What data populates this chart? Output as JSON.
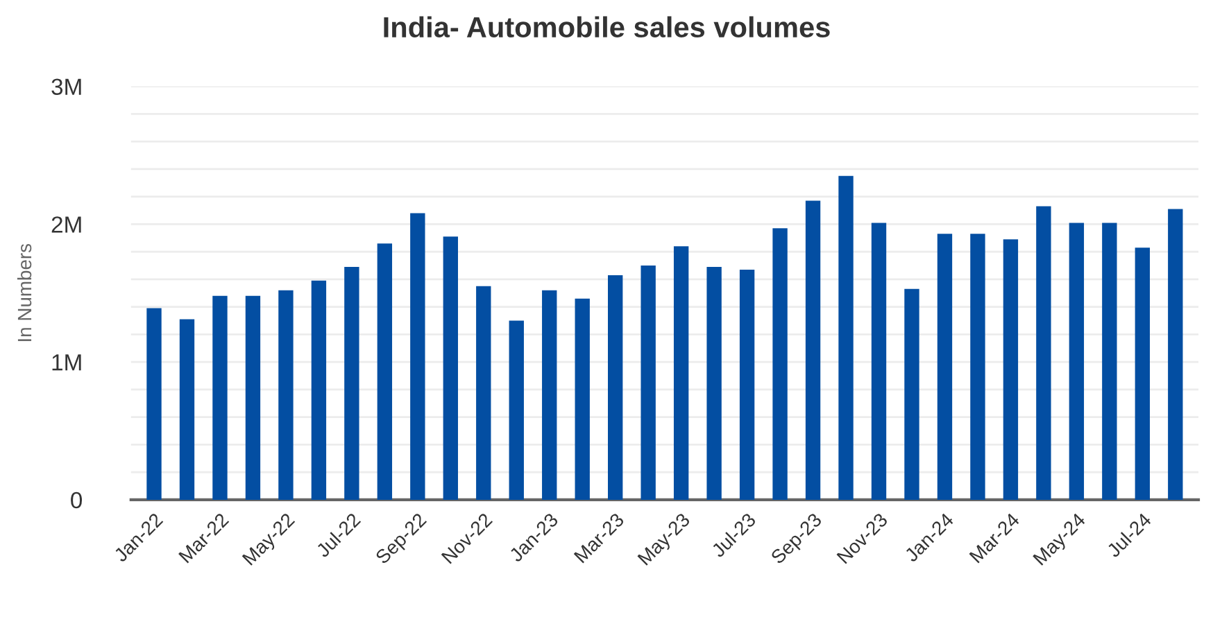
{
  "chart_data": {
    "type": "bar",
    "title": "India- Automobile sales volumes",
    "ylabel": "In Numbers",
    "categories": [
      "Jan-22",
      null,
      "Mar-22",
      null,
      "May-22",
      null,
      "Jul-22",
      null,
      "Sep-22",
      null,
      "Nov-22",
      null,
      "Jan-23",
      null,
      "Mar-23",
      null,
      "May-23",
      null,
      "Jul-23",
      null,
      "Sep-23",
      null,
      "Nov-23",
      null,
      "Jan-24",
      null,
      "Mar-24",
      null,
      "May-24",
      null,
      "Jul-24",
      null
    ],
    "values": [
      1390000,
      1310000,
      1480000,
      1480000,
      1520000,
      1590000,
      1690000,
      1860000,
      2080000,
      1910000,
      1550000,
      1300000,
      1520000,
      1460000,
      1630000,
      1700000,
      1840000,
      1690000,
      1670000,
      1970000,
      2170000,
      2350000,
      2010000,
      1530000,
      1930000,
      1930000,
      1890000,
      2130000,
      2010000,
      2010000,
      1830000,
      2110000
    ],
    "color": "#034ea2",
    "ylim": [
      0,
      3000000
    ],
    "yticks": [
      {
        "value": 0,
        "label": "0"
      },
      {
        "value": 200000,
        "label": null
      },
      {
        "value": 400000,
        "label": null
      },
      {
        "value": 600000,
        "label": null
      },
      {
        "value": 800000,
        "label": null
      },
      {
        "value": 1000000,
        "label": "1M"
      },
      {
        "value": 1200000,
        "label": null
      },
      {
        "value": 1400000,
        "label": null
      },
      {
        "value": 1600000,
        "label": null
      },
      {
        "value": 1800000,
        "label": null
      },
      {
        "value": 2000000,
        "label": "2M"
      },
      {
        "value": 2200000,
        "label": null
      },
      {
        "value": 2400000,
        "label": null
      },
      {
        "value": 2600000,
        "label": null
      },
      {
        "value": 2800000,
        "label": null
      },
      {
        "value": 3000000,
        "label": "3M"
      }
    ],
    "grid": "y",
    "legend": false
  }
}
